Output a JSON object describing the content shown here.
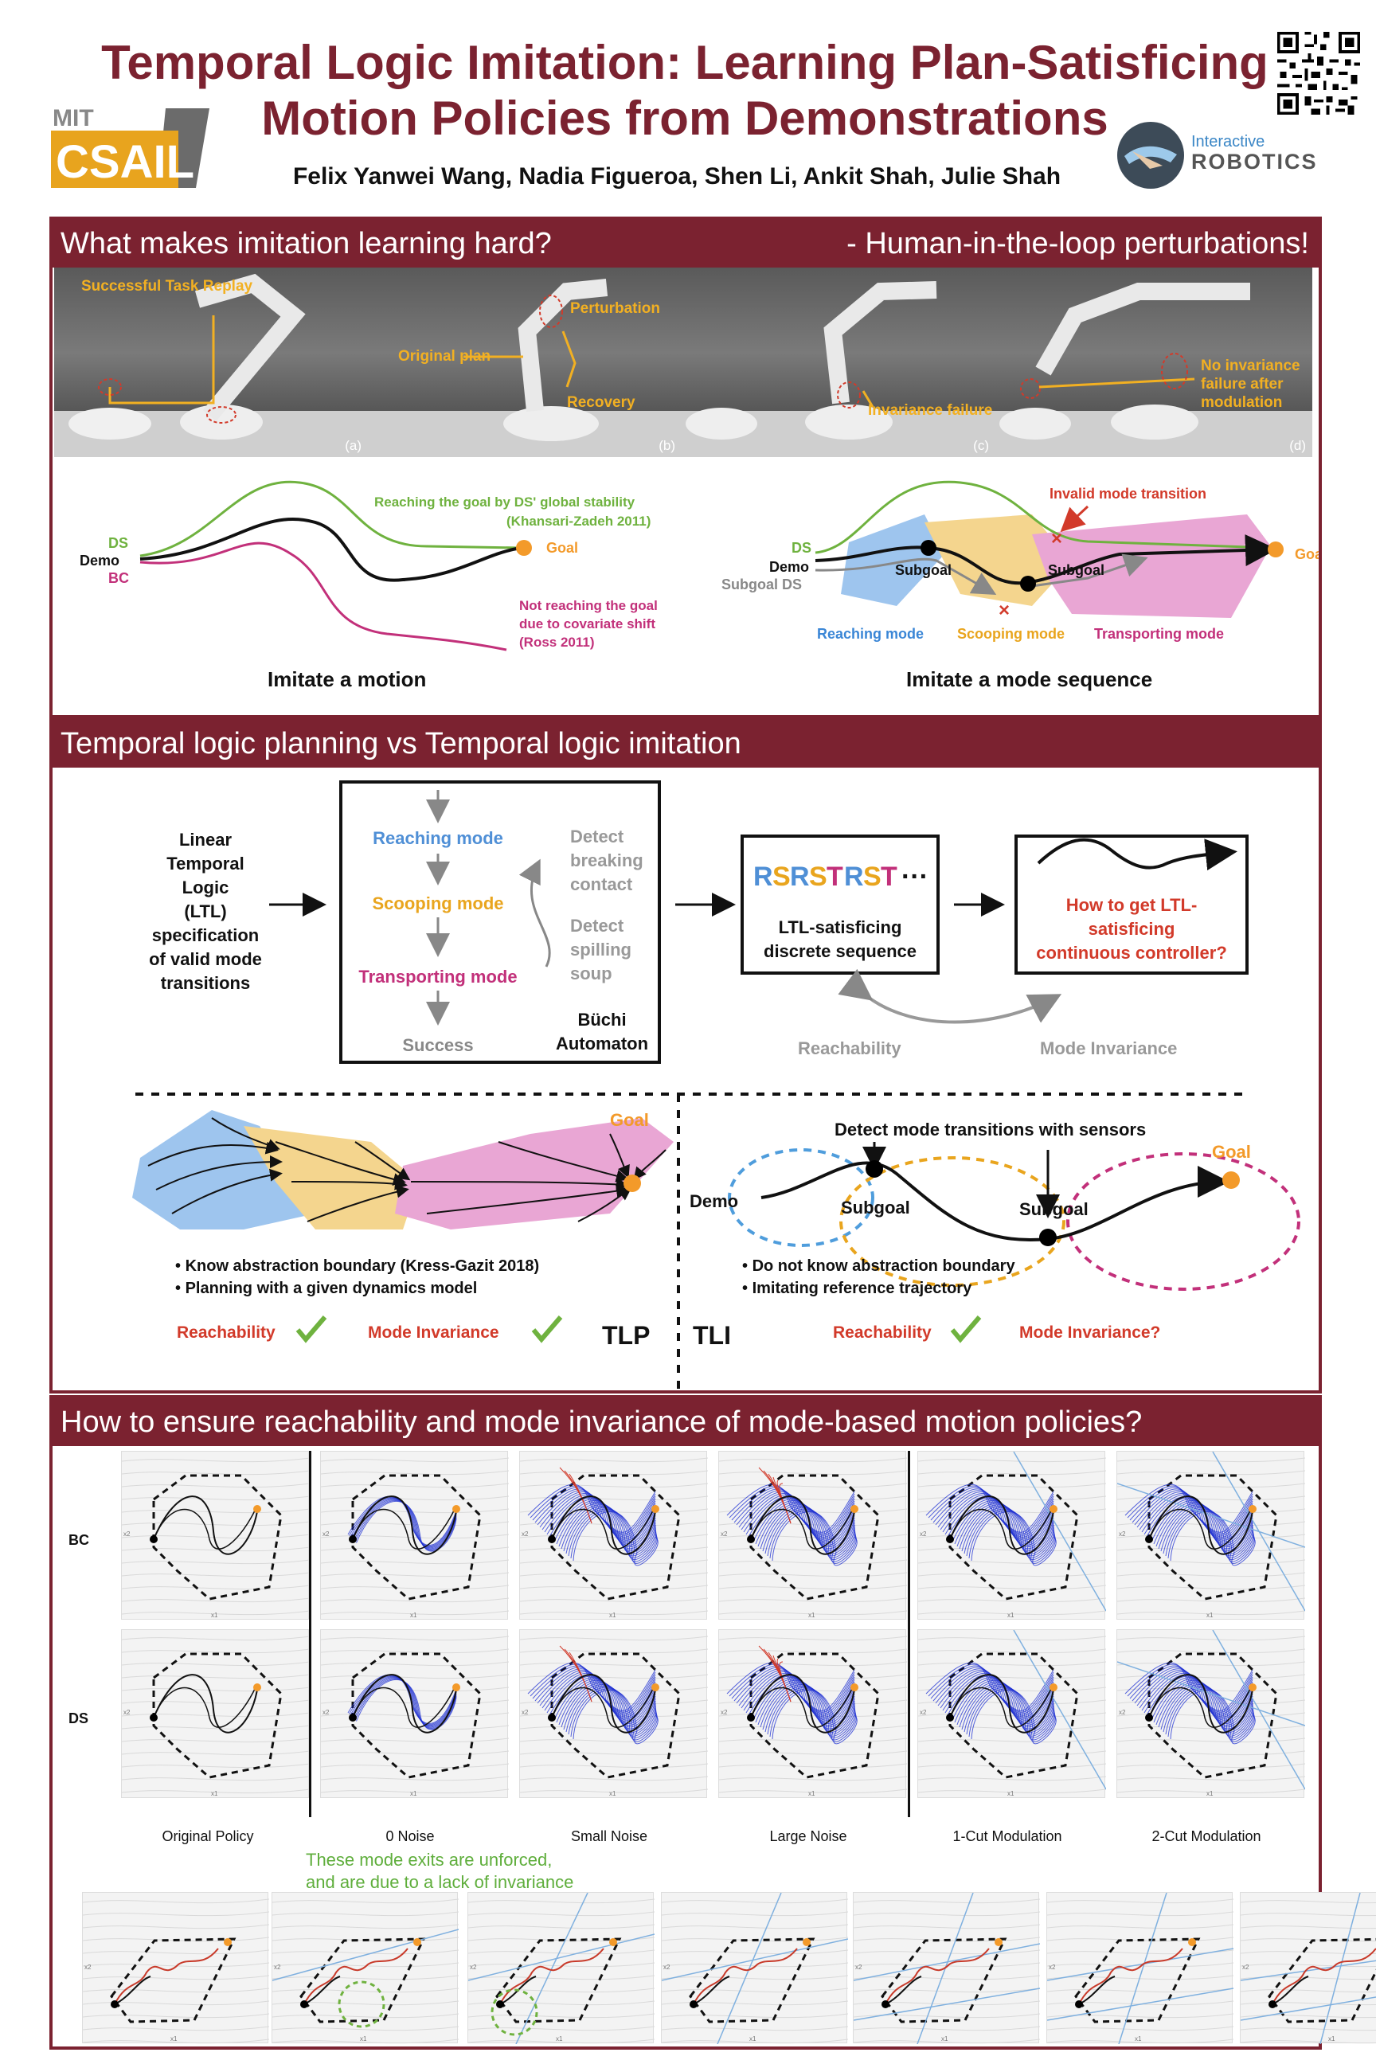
{
  "header": {
    "title_line1": "Temporal Logic Imitation: Learning Plan-Satisficing",
    "title_line2": "Motion Policies from Demonstrations",
    "authors": "Felix Yanwei Wang, Nadia Figueroa, Shen Li, Ankit Shah, Julie Shah",
    "logo_mit_text": "MIT",
    "logo_csail_text": "CSAIL",
    "logo_ir_text1": "Interactive",
    "logo_ir_text2": "ROBOTICS"
  },
  "section1": {
    "heading": "What makes imitation learning hard?",
    "heading_right": "- Human-in-the-loop perturbations!",
    "photos": [
      {
        "tag": "(a)",
        "labels": [
          "Successful Task Replay"
        ]
      },
      {
        "tag": "(b)",
        "labels": [
          "Perturbation",
          "Original plan",
          "Recovery"
        ]
      },
      {
        "tag": "(c)",
        "labels": [
          "Invariance failure"
        ]
      },
      {
        "tag": "(d)",
        "labels": [
          "No invariance failure after modulation"
        ]
      }
    ],
    "left_diagram": {
      "ds": "DS",
      "demo": "Demo",
      "bc": "BC",
      "goal": "Goal",
      "green_note1": "Reaching the goal by DS' global stability",
      "green_note2": "(Khansari-Zadeh 2011)",
      "red_note1": "Not reaching the goal",
      "red_note2": "due to covariate shift",
      "red_note3": "(Ross 2011)",
      "caption": "Imitate a motion"
    },
    "right_diagram": {
      "ds": "DS",
      "demo": "Demo",
      "subgoal_ds": "Subgoal DS",
      "goal": "Goal",
      "subgoal1": "Subgoal",
      "subgoal2": "Subgoal",
      "invalid": "Invalid mode transition",
      "reaching": "Reaching mode",
      "scooping": "Scooping mode",
      "transporting": "Transporting mode",
      "caption": "Imitate a mode sequence"
    }
  },
  "section2": {
    "heading": "Temporal logic planning vs Temporal logic imitation",
    "ltl_text": [
      "Linear",
      "Temporal",
      "Logic",
      "(LTL)",
      "specification",
      "of valid mode",
      "transitions"
    ],
    "modes": [
      "Reaching mode",
      "Scooping mode",
      "Transporting mode",
      "Success"
    ],
    "detect1": [
      "Detect",
      "breaking",
      "contact"
    ],
    "detect2": [
      "Detect",
      "spilling",
      "soup"
    ],
    "buchi": [
      "Büchi",
      "Automaton"
    ],
    "sequence": [
      "R",
      "S",
      "R",
      "S",
      "T",
      "R",
      "S",
      "T"
    ],
    "sequence_dots": "···",
    "seq_caption": [
      "LTL-satisficing",
      "discrete sequence"
    ],
    "controller_caption": [
      "How to get LTL-",
      "satisficing",
      "continuous controller?"
    ],
    "reachability": "Reachability",
    "mode_invariance": "Mode Invariance",
    "tlp": {
      "goal": "Goal",
      "bullets": [
        "Know abstraction boundary (Kress-Gazit 2018)",
        "Planning with a given dynamics model"
      ],
      "reach": "Reachability",
      "inv": "Mode Invariance",
      "label": "TLP"
    },
    "tli": {
      "detect": "Detect mode transitions with sensors",
      "goal": "Goal",
      "demo": "Demo",
      "subgoal1": "Subgoal",
      "subgoal2": "Subgoal",
      "bullets": [
        "Do not know abstraction boundary",
        "Imitating reference trajectory"
      ],
      "reach": "Reachability",
      "inv": "Mode Invariance?",
      "label": "TLI"
    }
  },
  "section3": {
    "heading": "How to ensure reachability and mode invariance of mode-based motion policies?",
    "row_labels": [
      "BC",
      "DS"
    ],
    "columns": [
      "Original Policy",
      "0 Noise",
      "Small Noise",
      "Large Noise",
      "1-Cut Modulation",
      "2-Cut Modulation"
    ],
    "note1": "These mode exits are unforced,",
    "note2": "and are due to a lack of invariance",
    "axis_x": "x1",
    "axis_y": "x2"
  },
  "colors": {
    "maroon": "#7b2230",
    "gold": "#f2b022",
    "green": "#6fb23f",
    "magenta": "#c2307a",
    "blue_mode": "#9ec5ee",
    "yellow_mode": "#f4d58e",
    "pink_mode": "#e9a6d4",
    "red": "#d23a2a",
    "orange": "#f39a2a",
    "traj_blue": "#1d2fd1"
  }
}
